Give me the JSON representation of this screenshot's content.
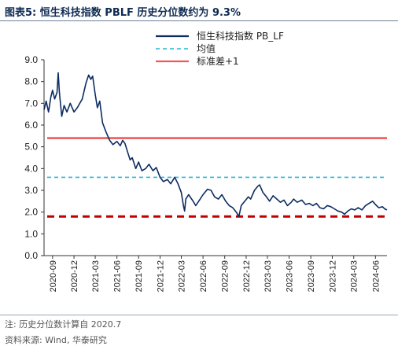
{
  "header": {
    "title": "图表5:   恒生科技指数 PBLF 历史分位数约为 9.3%"
  },
  "footer": {
    "note": "注: 历史分位数计算自 2020.7",
    "source": "资料来源: Wind, 华泰研究"
  },
  "colors": {
    "series": "#0c2c62",
    "mean": "#2ab3de",
    "plus1": "#ee5a5a",
    "minus1": "#c00000",
    "axis": "#333333"
  },
  "chart_data": {
    "type": "line",
    "title": "恒生科技指数 PBLF 历史分位数约为 9.3%",
    "ylim": [
      0,
      9
    ],
    "yticks": [
      "0.0",
      "1.0",
      "2.0",
      "3.0",
      "4.0",
      "5.0",
      "6.0",
      "7.0",
      "8.0",
      "9.0"
    ],
    "xticks": [
      "2020-09",
      "2020-12",
      "2021-03",
      "2021-06",
      "2021-09",
      "2021-12",
      "2022-03",
      "2022-06",
      "2022-09",
      "2022-12",
      "2023-03",
      "2023-06",
      "2023-09",
      "2023-12",
      "2024-03",
      "2024-06"
    ],
    "legend": [
      {
        "name": "恒生科技指数 PB_LF",
        "style": "solid",
        "color": "#0c2c62"
      },
      {
        "name": "均值",
        "style": "dashed",
        "color": "#2ab3de"
      },
      {
        "name": "标准差+1",
        "style": "solid",
        "color": "#ee5a5a"
      }
    ],
    "reference_lines": [
      {
        "name": "均值",
        "value": 3.6,
        "style": "dashed",
        "color": "#2ab3de"
      },
      {
        "name": "标准差+1",
        "value": 5.4,
        "style": "solid",
        "color": "#ee5a5a"
      },
      {
        "name": "标准差-1",
        "value": 1.8,
        "style": "dashed",
        "color": "#c00000"
      }
    ],
    "series": [
      {
        "name": "恒生科技指数 PB_LF",
        "points": [
          [
            "2020-07-27",
            6.7
          ],
          [
            "2020-08-05",
            7.1
          ],
          [
            "2020-08-15",
            6.6
          ],
          [
            "2020-08-25",
            7.3
          ],
          [
            "2020-09-01",
            7.6
          ],
          [
            "2020-09-10",
            7.2
          ],
          [
            "2020-09-20",
            7.5
          ],
          [
            "2020-09-25",
            8.4
          ],
          [
            "2020-09-30",
            7.5
          ],
          [
            "2020-10-10",
            6.4
          ],
          [
            "2020-10-20",
            6.9
          ],
          [
            "2020-11-01",
            6.6
          ],
          [
            "2020-11-15",
            7.0
          ],
          [
            "2020-12-01",
            6.6
          ],
          [
            "2020-12-15",
            6.8
          ],
          [
            "2021-01-05",
            7.2
          ],
          [
            "2021-01-20",
            7.9
          ],
          [
            "2021-02-01",
            8.3
          ],
          [
            "2021-02-10",
            8.1
          ],
          [
            "2021-02-18",
            8.25
          ],
          [
            "2021-03-01",
            7.4
          ],
          [
            "2021-03-10",
            6.8
          ],
          [
            "2021-03-20",
            7.1
          ],
          [
            "2021-04-01",
            6.1
          ],
          [
            "2021-04-15",
            5.7
          ],
          [
            "2021-05-01",
            5.3
          ],
          [
            "2021-05-15",
            5.1
          ],
          [
            "2021-06-01",
            5.25
          ],
          [
            "2021-06-15",
            5.05
          ],
          [
            "2021-06-25",
            5.3
          ],
          [
            "2021-07-05",
            5.15
          ],
          [
            "2021-07-15",
            4.8
          ],
          [
            "2021-07-27",
            4.4
          ],
          [
            "2021-08-05",
            4.5
          ],
          [
            "2021-08-20",
            4.0
          ],
          [
            "2021-09-01",
            4.3
          ],
          [
            "2021-09-15",
            3.9
          ],
          [
            "2021-10-01",
            4.0
          ],
          [
            "2021-10-15",
            4.2
          ],
          [
            "2021-11-01",
            3.9
          ],
          [
            "2021-11-15",
            4.05
          ],
          [
            "2021-12-01",
            3.6
          ],
          [
            "2021-12-15",
            3.4
          ],
          [
            "2022-01-01",
            3.5
          ],
          [
            "2022-01-15",
            3.3
          ],
          [
            "2022-02-01",
            3.6
          ],
          [
            "2022-02-15",
            3.3
          ],
          [
            "2022-03-01",
            2.9
          ],
          [
            "2022-03-10",
            2.3
          ],
          [
            "2022-03-15",
            2.05
          ],
          [
            "2022-03-20",
            2.6
          ],
          [
            "2022-04-01",
            2.8
          ],
          [
            "2022-04-20",
            2.5
          ],
          [
            "2022-05-01",
            2.3
          ],
          [
            "2022-05-20",
            2.6
          ],
          [
            "2022-06-01",
            2.8
          ],
          [
            "2022-06-20",
            3.05
          ],
          [
            "2022-07-05",
            3.0
          ],
          [
            "2022-07-20",
            2.7
          ],
          [
            "2022-08-05",
            2.6
          ],
          [
            "2022-08-20",
            2.8
          ],
          [
            "2022-09-05",
            2.5
          ],
          [
            "2022-09-20",
            2.3
          ],
          [
            "2022-10-05",
            2.2
          ],
          [
            "2022-10-20",
            2.0
          ],
          [
            "2022-10-31",
            1.8
          ],
          [
            "2022-11-10",
            2.3
          ],
          [
            "2022-11-25",
            2.5
          ],
          [
            "2022-12-10",
            2.7
          ],
          [
            "2022-12-20",
            2.6
          ],
          [
            "2023-01-05",
            3.0
          ],
          [
            "2023-01-20",
            3.2
          ],
          [
            "2023-01-27",
            3.25
          ],
          [
            "2023-02-10",
            2.9
          ],
          [
            "2023-02-25",
            2.7
          ],
          [
            "2023-03-10",
            2.5
          ],
          [
            "2023-03-25",
            2.75
          ],
          [
            "2023-04-10",
            2.6
          ],
          [
            "2023-04-25",
            2.45
          ],
          [
            "2023-05-10",
            2.55
          ],
          [
            "2023-05-25",
            2.3
          ],
          [
            "2023-06-10",
            2.45
          ],
          [
            "2023-06-20",
            2.6
          ],
          [
            "2023-07-05",
            2.45
          ],
          [
            "2023-07-25",
            2.55
          ],
          [
            "2023-08-10",
            2.35
          ],
          [
            "2023-08-25",
            2.4
          ],
          [
            "2023-09-10",
            2.3
          ],
          [
            "2023-09-25",
            2.4
          ],
          [
            "2023-10-10",
            2.2
          ],
          [
            "2023-10-25",
            2.15
          ],
          [
            "2023-11-10",
            2.3
          ],
          [
            "2023-11-25",
            2.25
          ],
          [
            "2023-12-10",
            2.15
          ],
          [
            "2023-12-25",
            2.05
          ],
          [
            "2024-01-10",
            2.0
          ],
          [
            "2024-01-22",
            1.9
          ],
          [
            "2024-02-05",
            2.05
          ],
          [
            "2024-02-20",
            2.15
          ],
          [
            "2024-03-05",
            2.1
          ],
          [
            "2024-03-20",
            2.2
          ],
          [
            "2024-04-05",
            2.1
          ],
          [
            "2024-04-20",
            2.3
          ],
          [
            "2024-05-05",
            2.4
          ],
          [
            "2024-05-20",
            2.5
          ],
          [
            "2024-06-01",
            2.35
          ],
          [
            "2024-06-15",
            2.2
          ],
          [
            "2024-07-01",
            2.25
          ],
          [
            "2024-07-10",
            2.15
          ],
          [
            "2024-07-20",
            2.1
          ]
        ]
      }
    ]
  }
}
